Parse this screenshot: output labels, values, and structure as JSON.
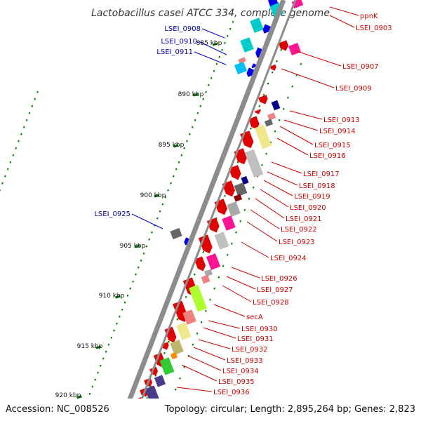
{
  "title": "Lactobacillus casei ATCC 334, complete genome",
  "footer": {
    "accession": "Accession: NC_008526",
    "summary": "Topology: circular; Length: 2,895,264 bp; Genes: 2,823"
  },
  "colors": {
    "forward_label": "#0000aa",
    "reverse_label": "#cc0000",
    "backbone": "#8c8c8c",
    "tick": "#008000",
    "leader_forward": "#0000cc",
    "leader_reverse": "#cc0000"
  },
  "scale": {
    "labels": [
      "885 kbp",
      "890 kbp",
      "895 kbp",
      "900 kbp",
      "905 kbp",
      "910 kbp",
      "915 kbp",
      "920 kbp"
    ]
  },
  "forward_labels": [
    "LSEI_0908",
    "LSEI_0910",
    "LSEI_0911",
    "LSEI_0925"
  ],
  "reverse_labels": [
    "ppnK",
    "LSEI_0903",
    "LSEI_0907",
    "LSEI_0909",
    "LSEI_0913",
    "LSEI_0914",
    "LSEI_0915",
    "LSEI_0916",
    "LSEI_0917",
    "LSEI_0918",
    "LSEI_0919",
    "LSEI_0920",
    "LSEI_0921",
    "LSEI_0922",
    "LSEI_0923",
    "LSEI_0924",
    "LSEI_0926",
    "LSEI_0927",
    "LSEI_0928",
    "secA",
    "LSEI_0930",
    "LSEI_0931",
    "LSEI_0932",
    "LSEI_0933",
    "LSEI_0934",
    "LSEI_0935",
    "LSEI_0936"
  ]
}
